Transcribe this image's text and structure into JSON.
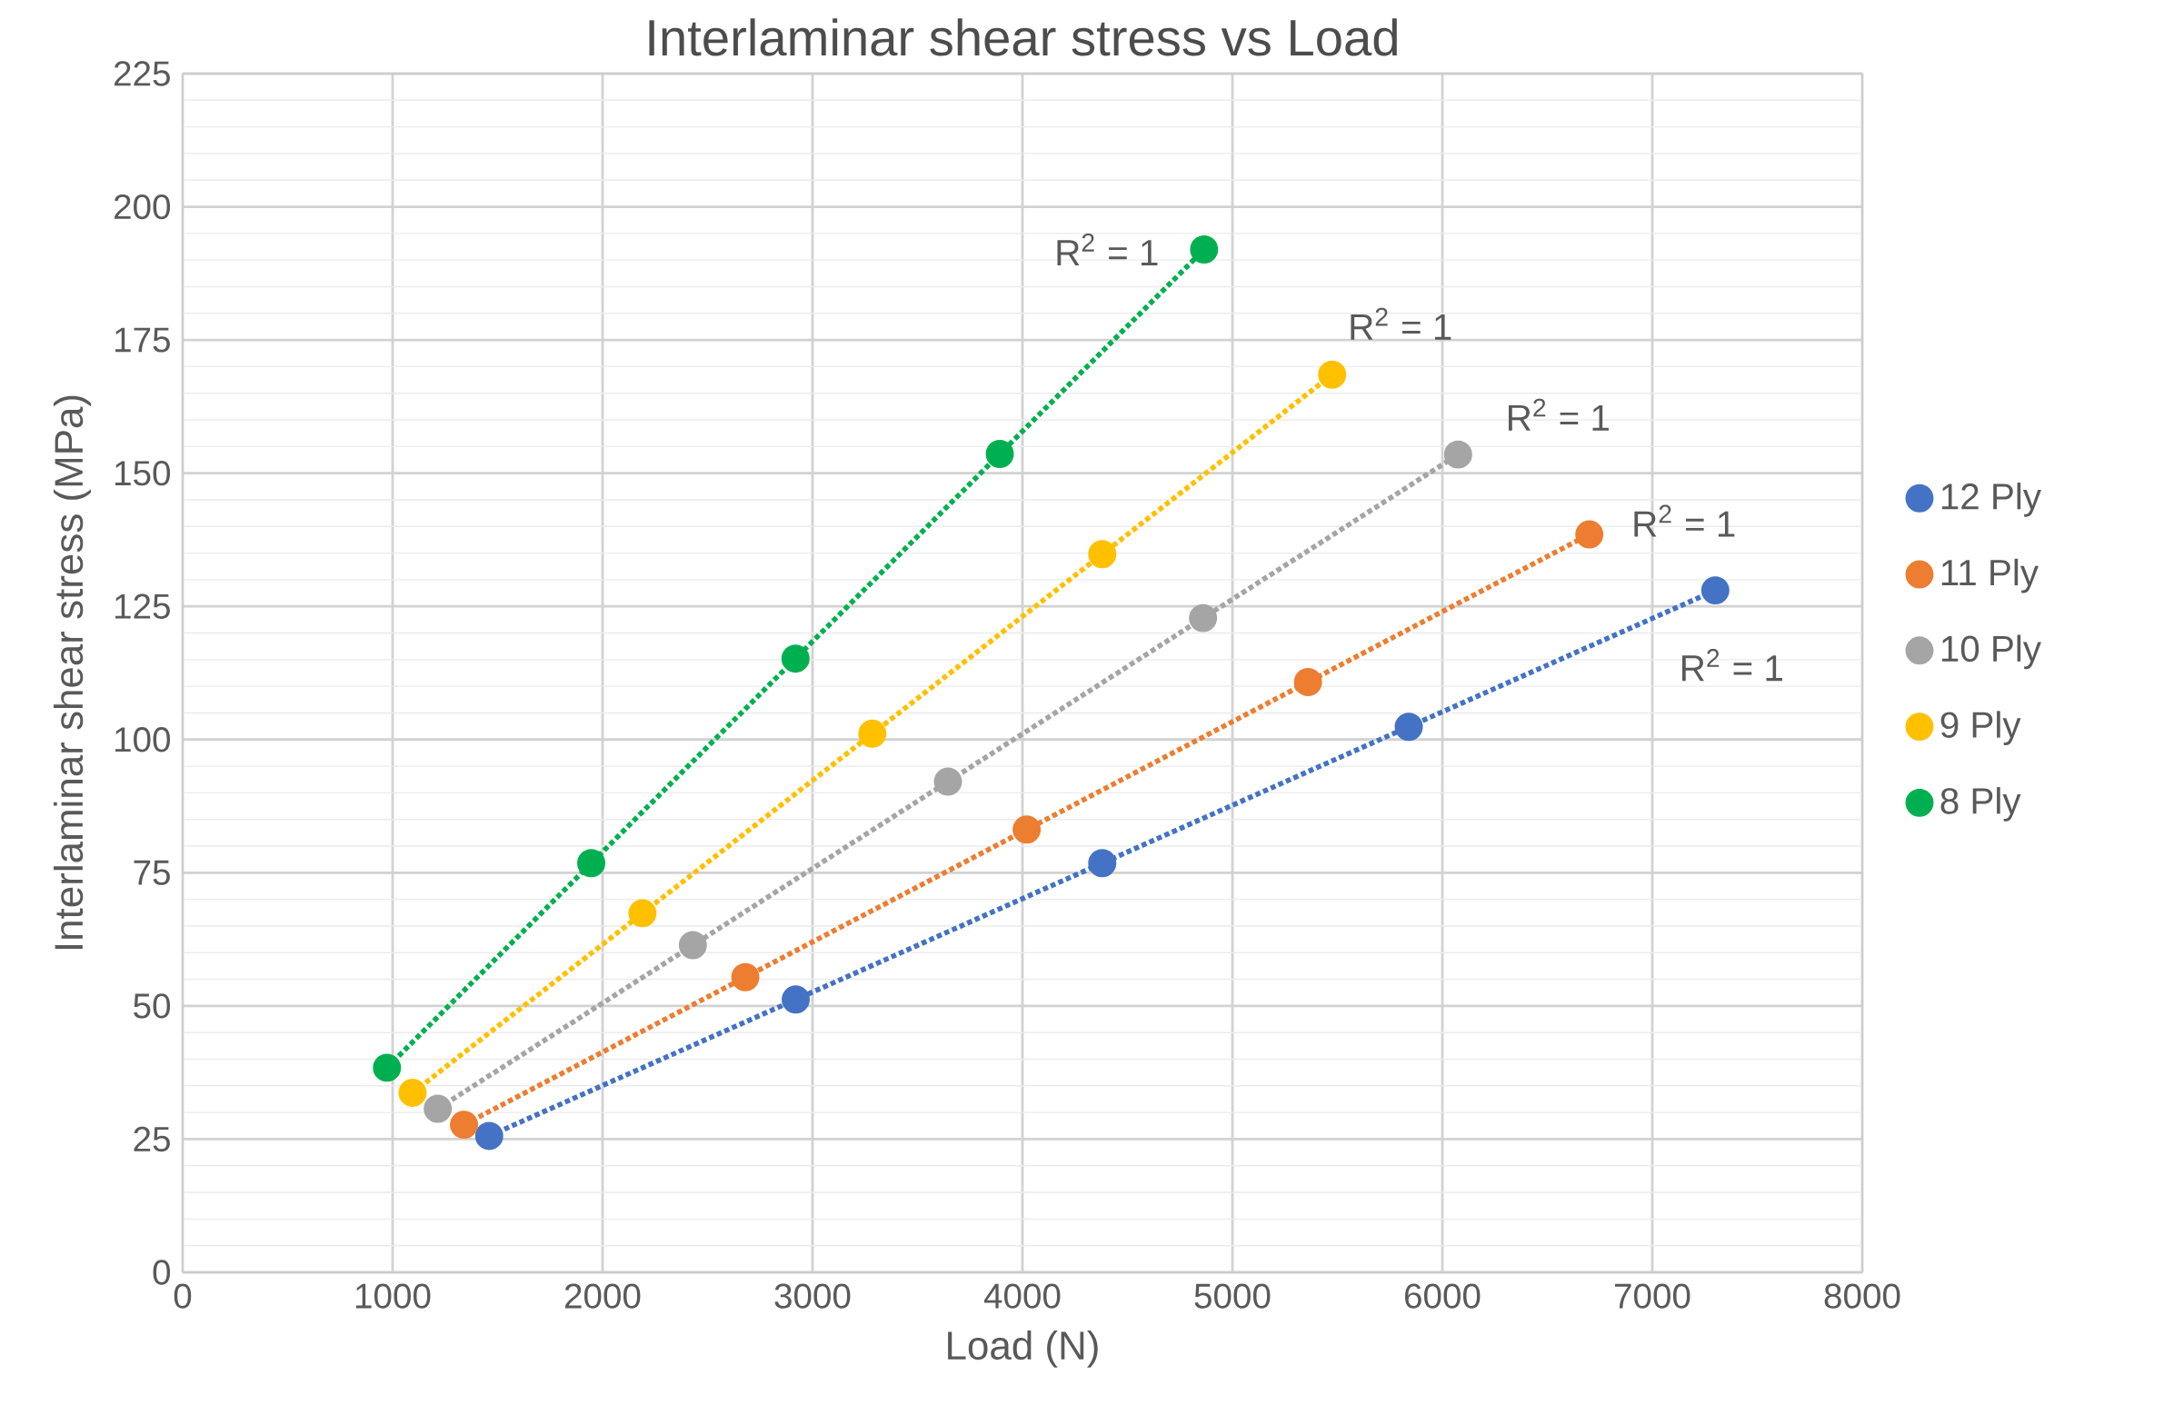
{
  "chart_data": {
    "type": "scatter",
    "title": "Interlaminar shear stress vs Load",
    "xlabel": "Load (N)",
    "ylabel": "Interlaminar shear stress (MPa)",
    "xlim": [
      0,
      8000
    ],
    "xticks": [
      0,
      1000,
      2000,
      3000,
      4000,
      5000,
      6000,
      7000,
      8000
    ],
    "ylim": [
      0,
      225
    ],
    "yticks": [
      0,
      25,
      50,
      75,
      100,
      125,
      150,
      175,
      200,
      225
    ],
    "grid": true,
    "legend": "right",
    "series": [
      {
        "name": "12 Ply",
        "marker": "circle",
        "color": "#4472c4",
        "x": [
          1460,
          2920,
          4380,
          5840,
          7300
        ],
        "values": [
          25.6,
          51.2,
          76.8,
          102.4,
          128
        ]
      },
      {
        "name": "11 Ply",
        "marker": "circle",
        "color": "#ed7d31",
        "x": [
          1340,
          2680,
          4020,
          5360,
          6700
        ],
        "values": [
          27.7,
          55.4,
          83.1,
          110.8,
          138.5
        ]
      },
      {
        "name": "10 Ply",
        "marker": "circle",
        "color": "#a5a5a5",
        "x": [
          1215,
          2430,
          3645,
          4860,
          6075
        ],
        "values": [
          30.7,
          61.4,
          92.1,
          122.8,
          153.5
        ]
      },
      {
        "name": "9 Ply",
        "marker": "circle",
        "color": "#ffc000",
        "x": [
          1095,
          2190,
          3285,
          4380,
          5475
        ],
        "values": [
          33.7,
          67.4,
          101.1,
          134.8,
          168.5
        ]
      },
      {
        "name": "8 Ply",
        "marker": "circle",
        "color": "#00b050",
        "x": [
          973,
          1946,
          2919,
          3892,
          4865
        ],
        "values": [
          38.4,
          76.8,
          115.2,
          153.6,
          192
        ]
      },
      {
        "type": "line",
        "line_style": "dotted",
        "marker": "none",
        "color": "#4472c4",
        "x": [
          1460,
          7300
        ],
        "values": [
          25.6,
          128
        ]
      },
      {
        "type": "line",
        "line_style": "dotted",
        "marker": "none",
        "color": "#ed7d31",
        "x": [
          1340,
          6700
        ],
        "values": [
          27.7,
          138.5
        ]
      },
      {
        "type": "line",
        "line_style": "dotted",
        "marker": "none",
        "color": "#a5a5a5",
        "x": [
          1215,
          6075
        ],
        "values": [
          30.7,
          153.5
        ]
      },
      {
        "type": "line",
        "line_style": "dotted",
        "marker": "none",
        "color": "#ffc000",
        "x": [
          1095,
          5475
        ],
        "values": [
          33.7,
          168.5
        ]
      },
      {
        "type": "line",
        "line_style": "dotted",
        "marker": "none",
        "color": "#00b050",
        "x": [
          973,
          4865
        ],
        "values": [
          38.4,
          192
        ]
      }
    ],
    "annotations": [
      "R$^{2}$ = 1",
      "R$^{2}$ = 1",
      "R$^{2}$ = 1",
      "R$^{2}$ = 1",
      "R$^{2}$ = 1"
    ]
  }
}
